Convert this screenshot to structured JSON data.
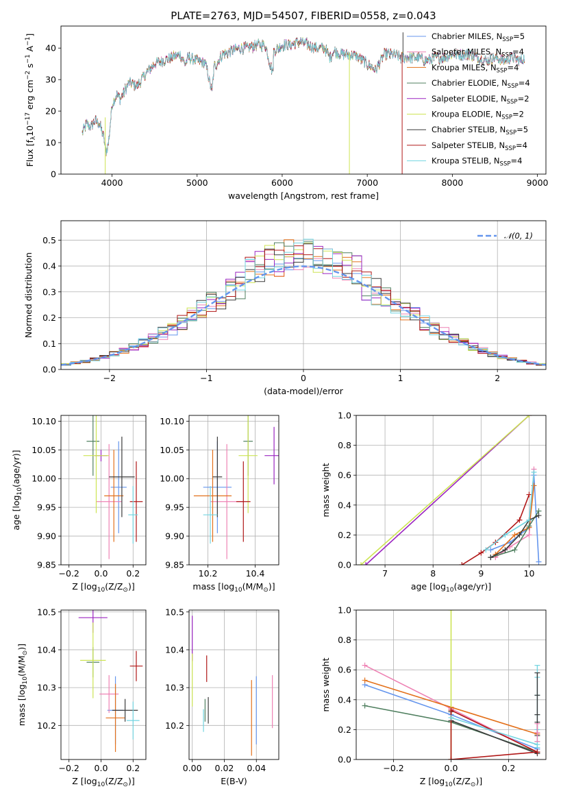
{
  "title": "PLATE=2763, MJD=54507, FIBERID=0558, z=0.043",
  "colors": {
    "series": [
      "#6495ed",
      "#ee82b4",
      "#e3701a",
      "#4f7f5f",
      "#9a23c0",
      "#cde453",
      "#3a3a3a",
      "#b01616",
      "#72d4e0"
    ],
    "normal_curve": "#6495ed",
    "grid": "#b0b0b0"
  },
  "legend_labels": [
    {
      "pre": "Chabrier MILES, N",
      "sub": "SSP",
      "post": "=5"
    },
    {
      "pre": "Salpeter MILES, N",
      "sub": "SSP",
      "post": "=4"
    },
    {
      "pre": "Kroupa MILES, N",
      "sub": "SSP",
      "post": "=4"
    },
    {
      "pre": "Chabrier ELODIE, N",
      "sub": "SSP",
      "post": "=4"
    },
    {
      "pre": "Salpeter ELODIE, N",
      "sub": "SSP",
      "post": "=2"
    },
    {
      "pre": "Kroupa ELODIE, N",
      "sub": "SSP",
      "post": "=2"
    },
    {
      "pre": "Chabrier STELIB, N",
      "sub": "SSP",
      "post": "=5"
    },
    {
      "pre": "Salpeter STELIB, N",
      "sub": "SSP",
      "post": "=4"
    },
    {
      "pre": "Kroupa STELIB, N",
      "sub": "SSP",
      "post": "=4"
    }
  ],
  "chart_data": [
    {
      "id": "spectrum",
      "type": "line",
      "xlabel": "wavelength [Angstrom, rest frame]",
      "ylabel": {
        "pre": "Flux [f",
        "sub": "λ",
        "mid": "10",
        "sup": "−17",
        "post": " erg cm",
        "sup2": "−2",
        "post2": " s",
        "sup3": "−1",
        "post3": " A",
        "sup4": "−1",
        "post4": "]"
      },
      "xlim": [
        3400,
        9100
      ],
      "ylim": [
        0,
        47
      ],
      "xticks": [
        4000,
        5000,
        6000,
        7000,
        8000,
        9000
      ],
      "yticks": [
        0,
        10,
        20,
        30,
        40
      ],
      "spectrum_anchors": {
        "x": [
          3650,
          3700,
          3750,
          3800,
          3850,
          3900,
          3930,
          3960,
          4000,
          4050,
          4100,
          4200,
          4300,
          4400,
          4500,
          4600,
          4700,
          4800,
          4861,
          4900,
          5000,
          5100,
          5175,
          5200,
          5300,
          5400,
          5500,
          5600,
          5700,
          5800,
          5890,
          5900,
          6000,
          6100,
          6200,
          6300,
          6400,
          6500,
          6563,
          6600,
          6700,
          6800,
          6900,
          7000,
          7100,
          7200,
          7300,
          7400,
          7500,
          7600,
          7700,
          7800,
          7900,
          8000,
          8100,
          8200,
          8300,
          8400,
          8500,
          8600,
          8700,
          8800,
          8850
        ],
        "y": [
          13,
          16,
          15,
          17,
          16,
          12,
          7,
          10,
          22,
          25,
          24,
          29,
          28,
          32,
          35,
          36,
          37,
          38,
          35,
          37,
          36,
          35,
          26,
          34,
          38,
          39,
          40,
          40,
          41,
          41,
          32,
          39,
          41,
          41,
          42,
          41,
          40,
          40,
          37,
          39,
          38,
          38,
          37,
          35,
          33,
          38,
          38,
          37,
          37,
          37,
          36,
          37,
          37,
          38,
          38,
          38,
          37,
          36,
          37,
          36,
          37,
          36,
          37
        ]
      },
      "spikes": [
        {
          "series": 5,
          "x": 3920,
          "y_low": 0,
          "y_high": 18
        },
        {
          "series": 5,
          "x": 6790,
          "y_low": 0,
          "y_high": 38
        },
        {
          "series": 7,
          "x": 7410,
          "y_low": 0,
          "y_high": 38
        },
        {
          "series": 6,
          "x": 7420,
          "y_low": 38,
          "y_high": 45
        }
      ]
    },
    {
      "id": "residual_histogram",
      "type": "histogram",
      "xlabel": "(data-model)/error",
      "ylabel": "Normed distribution",
      "xlim": [
        -2.5,
        2.5
      ],
      "ylim": [
        0,
        0.575
      ],
      "xticks": [
        -2,
        -1,
        0,
        1,
        2
      ],
      "yticks": [
        0.0,
        0.1,
        0.2,
        0.3,
        0.4,
        0.5
      ],
      "bin_width": 0.1,
      "bin_min": -2.5,
      "bin_max": 2.5,
      "curve_label": "𝒩(0, 1)"
    },
    {
      "id": "age_vs_Z",
      "type": "errorbar",
      "xlabel": {
        "pre": "Z [log",
        "sub": "10",
        "post": "(Z/Z",
        "sub2": "⊙",
        "post2": ")]"
      },
      "ylabel": {
        "pre": "age  [log",
        "sub": "10",
        "post": "(age/yr)]"
      },
      "xlim": [
        -0.25,
        0.28
      ],
      "ylim": [
        9.85,
        10.11
      ],
      "xticks": [
        -0.2,
        0.0,
        0.2
      ],
      "xticklabels": [
        "−0.2",
        "0.0",
        "0.2"
      ],
      "yticks": [
        9.85,
        9.9,
        9.95,
        10.0,
        10.05,
        10.1
      ],
      "points": [
        {
          "s": 0,
          "x": 0.11,
          "y": 9.985,
          "xe": 0.05,
          "ye": 0.08
        },
        {
          "s": 1,
          "x": 0.05,
          "y": 9.96,
          "xe": 0.08,
          "ye": 0.1
        },
        {
          "s": 2,
          "x": 0.08,
          "y": 9.97,
          "xe": 0.06,
          "ye": 0.08
        },
        {
          "s": 3,
          "x": -0.05,
          "y": 10.065,
          "xe": 0.04,
          "ye": 0.06
        },
        {
          "s": 4,
          "x": 0.0,
          "y": 10.04,
          "xe": 0.04,
          "ye": 0.01
        },
        {
          "s": 5,
          "x": -0.03,
          "y": 10.04,
          "xe": 0.08,
          "ye": 0.1
        },
        {
          "s": 6,
          "x": 0.13,
          "y": 10.003,
          "xe": 0.08,
          "ye": 0.07
        },
        {
          "s": 7,
          "x": 0.22,
          "y": 9.96,
          "xe": 0.04,
          "ye": 0.07
        },
        {
          "s": 8,
          "x": 0.2,
          "y": 9.937,
          "xe": 0.03,
          "ye": 0.05
        }
      ]
    },
    {
      "id": "age_vs_mass",
      "type": "errorbar",
      "xlabel": {
        "pre": "mass [log",
        "sub": "10",
        "post": "(M/M",
        "sub2": "⊙",
        "post2": ")]"
      },
      "ylabel": "",
      "xlim": [
        10.12,
        10.5
      ],
      "ylim": [
        9.85,
        10.11
      ],
      "xticks": [
        10.2,
        10.4
      ],
      "xticklabels": [
        "10.2",
        "10.4"
      ],
      "yticks": [
        9.85,
        9.9,
        9.95,
        10.0,
        10.05,
        10.1
      ],
      "points": [
        {
          "s": 0,
          "x": 10.24,
          "y": 9.985,
          "xe": 0.06,
          "ye": 0.08
        },
        {
          "s": 1,
          "x": 10.28,
          "y": 9.96,
          "xe": 0.07,
          "ye": 0.1
        },
        {
          "s": 2,
          "x": 10.22,
          "y": 9.97,
          "xe": 0.08,
          "ye": 0.08
        },
        {
          "s": 3,
          "x": 10.37,
          "y": 10.065,
          "xe": 0.02,
          "ye": 0.06
        },
        {
          "s": 4,
          "x": 10.48,
          "y": 10.04,
          "xe": 0.04,
          "ye": 0.05
        },
        {
          "s": 5,
          "x": 10.37,
          "y": 10.04,
          "xe": 0.04,
          "ye": 0.1
        },
        {
          "s": 6,
          "x": 10.24,
          "y": 10.003,
          "xe": 0.02,
          "ye": 0.07
        },
        {
          "s": 7,
          "x": 10.35,
          "y": 9.96,
          "xe": 0.03,
          "ye": 0.07
        },
        {
          "s": 8,
          "x": 10.21,
          "y": 9.937,
          "xe": 0.03,
          "ye": 0.05
        }
      ]
    },
    {
      "id": "mass_weight_vs_age",
      "type": "line",
      "xlabel": {
        "pre": "age  [log",
        "sub": "10",
        "post": "(age/yr)]"
      },
      "ylabel": "mass weight",
      "xlim": [
        6.4,
        10.35
      ],
      "ylim": [
        0,
        1
      ],
      "xticks": [
        7,
        8,
        9,
        10
      ],
      "yticks": [
        0.0,
        0.2,
        0.4,
        0.6,
        0.8,
        1.0
      ],
      "series": [
        {
          "s": 0,
          "x": [
            9.2,
            9.6,
            10.0,
            10.1,
            10.2
          ],
          "y": [
            0.1,
            0.15,
            0.25,
            0.6,
            0.02
          ]
        },
        {
          "s": 1,
          "x": [
            9.3,
            9.6,
            10.0,
            10.1
          ],
          "y": [
            0.05,
            0.12,
            0.2,
            0.64
          ]
        },
        {
          "s": 2,
          "x": [
            9.3,
            9.7,
            10.0,
            10.1
          ],
          "y": [
            0.07,
            0.2,
            0.25,
            0.53
          ]
        },
        {
          "s": 3,
          "x": [
            9.2,
            9.7,
            10.0,
            10.2
          ],
          "y": [
            0.05,
            0.1,
            0.26,
            0.36
          ]
        },
        {
          "s": 4,
          "x": [
            6.6,
            10.0
          ],
          "y": [
            0.0,
            1.0
          ]
        },
        {
          "s": 5,
          "x": [
            6.5,
            10.0
          ],
          "y": [
            0.0,
            1.0
          ]
        },
        {
          "s": 6,
          "x": [
            9.2,
            9.5,
            9.8,
            10.0,
            10.2
          ],
          "y": [
            0.05,
            0.1,
            0.2,
            0.3,
            0.33
          ]
        },
        {
          "s": 7,
          "x": [
            8.6,
            9.0,
            9.3,
            9.8,
            10.0
          ],
          "y": [
            0.0,
            0.08,
            0.15,
            0.3,
            0.47
          ]
        },
        {
          "s": 8,
          "x": [
            9.1,
            9.5,
            10.0,
            10.1
          ],
          "y": [
            0.1,
            0.2,
            0.3,
            0.62
          ]
        }
      ]
    },
    {
      "id": "mass_vs_Z",
      "type": "errorbar",
      "xlabel": {
        "pre": "Z [log",
        "sub": "10",
        "post": "(Z/Z",
        "sub2": "⊙",
        "post2": ")]"
      },
      "ylabel": {
        "pre": "mass [log",
        "sub": "10",
        "post": "(M/M",
        "sub2": "⊙",
        "post2": ")]"
      },
      "xlim": [
        -0.25,
        0.28
      ],
      "ylim": [
        10.11,
        10.505
      ],
      "xticks": [
        -0.2,
        0.0,
        0.2
      ],
      "xticklabels": [
        "−0.2",
        "0.0",
        "0.2"
      ],
      "yticks": [
        10.2,
        10.3,
        10.4,
        10.5
      ],
      "points": [
        {
          "s": 0,
          "x": 0.09,
          "y": 10.24,
          "xe": 0.05,
          "ye": 0.09
        },
        {
          "s": 1,
          "x": 0.05,
          "y": 10.283,
          "xe": 0.06,
          "ye": 0.05
        },
        {
          "s": 2,
          "x": 0.09,
          "y": 10.22,
          "xe": 0.06,
          "ye": 0.09
        },
        {
          "s": 3,
          "x": -0.05,
          "y": 10.367,
          "xe": 0.04,
          "ye": 0.04
        },
        {
          "s": 4,
          "x": -0.05,
          "y": 10.485,
          "xe": 0.09,
          "ye": 0.04
        },
        {
          "s": 5,
          "x": -0.05,
          "y": 10.372,
          "xe": 0.08,
          "ye": 0.1
        },
        {
          "s": 6,
          "x": 0.15,
          "y": 10.24,
          "xe": 0.08,
          "ye": 0.03
        },
        {
          "s": 7,
          "x": 0.22,
          "y": 10.357,
          "xe": 0.04,
          "ye": 0.04
        },
        {
          "s": 8,
          "x": 0.2,
          "y": 10.213,
          "xe": 0.04,
          "ye": 0.05
        }
      ]
    },
    {
      "id": "mass_vs_ebv",
      "type": "errorbar",
      "xlabel": "E(B-V)",
      "ylabel": "",
      "xlim": [
        -0.002,
        0.054
      ],
      "ylim": [
        10.11,
        10.505
      ],
      "xticks": [
        0.0,
        0.02,
        0.04
      ],
      "xticklabels": [
        "0.00",
        "0.02",
        "0.04"
      ],
      "yticks": [
        10.2,
        10.3,
        10.4,
        10.5
      ],
      "points": [
        {
          "s": 0,
          "x": 0.04,
          "y": 10.24,
          "xe": 0,
          "ye": 0.09
        },
        {
          "s": 1,
          "x": 0.05,
          "y": 10.263,
          "xe": 0,
          "ye": 0.07
        },
        {
          "s": 2,
          "x": 0.037,
          "y": 10.22,
          "xe": 0,
          "ye": 0.1
        },
        {
          "s": 3,
          "x": 0.008,
          "y": 10.24,
          "xe": 0,
          "ye": 0.03
        },
        {
          "s": 4,
          "x": 0.0,
          "y": 10.43,
          "xe": 0,
          "ye": 0.06
        },
        {
          "s": 5,
          "x": 0.0,
          "y": 10.32,
          "xe": 0,
          "ye": 0.07
        },
        {
          "s": 6,
          "x": 0.01,
          "y": 10.24,
          "xe": 0,
          "ye": 0.035
        },
        {
          "s": 7,
          "x": 0.009,
          "y": 10.35,
          "xe": 0,
          "ye": 0.035
        },
        {
          "s": 8,
          "x": 0.007,
          "y": 10.213,
          "xe": 0,
          "ye": 0.03
        }
      ]
    },
    {
      "id": "mass_weight_vs_Z",
      "type": "line",
      "xlabel": {
        "pre": "Z [log",
        "sub": "10",
        "post": "(Z/Z",
        "sub2": "⊙",
        "post2": ")]"
      },
      "ylabel": "mass weight",
      "xlim": [
        -0.33,
        0.33
      ],
      "ylim": [
        0,
        1
      ],
      "xticks": [
        -0.2,
        0.0,
        0.2
      ],
      "xticklabels": [
        "−0.2",
        "0.0",
        "0.2"
      ],
      "yticks": [
        0.0,
        0.2,
        0.4,
        0.6,
        0.8,
        1.0
      ],
      "series": [
        {
          "s": 0,
          "x": [
            -0.3,
            0.0,
            0.3
          ],
          "y": [
            0.5,
            0.3,
            0.07
          ]
        },
        {
          "s": 1,
          "x": [
            -0.3,
            0.0,
            0.3
          ],
          "y": [
            0.63,
            0.34,
            0.05
          ]
        },
        {
          "s": 2,
          "x": [
            -0.3,
            0.0,
            0.3
          ],
          "y": [
            0.53,
            0.35,
            0.17
          ]
        },
        {
          "s": 3,
          "x": [
            -0.3,
            0.0,
            0.3
          ],
          "y": [
            0.36,
            0.25,
            0.05
          ]
        },
        {
          "s": 5,
          "x": [
            0.0,
            0.0
          ],
          "y": [
            0.0,
            1.0
          ]
        },
        {
          "s": 6,
          "x": [
            0.0,
            0.0,
            0.3
          ],
          "y": [
            0.32,
            0.26,
            0.04
          ]
        },
        {
          "s": 7,
          "x": [
            0.0,
            0.0,
            0.3,
            0.0
          ],
          "y": [
            0.0,
            0.33,
            0.05,
            0.0
          ]
        },
        {
          "s": 8,
          "x": [
            0.0,
            0.3
          ],
          "y": [
            0.28,
            0.1
          ]
        }
      ],
      "vertical_markers": [
        {
          "s": 8,
          "x": 0.3,
          "y": [
            0.63,
            0.55,
            0.43,
            0.3,
            0.2,
            0.12,
            0.08
          ]
        },
        {
          "s": 6,
          "x": 0.3,
          "y": [
            0.58,
            0.43,
            0.3,
            0.25,
            0.16
          ]
        },
        {
          "s": 1,
          "x": 0.3,
          "y": [
            0.24,
            0.18,
            0.12
          ]
        }
      ]
    }
  ]
}
